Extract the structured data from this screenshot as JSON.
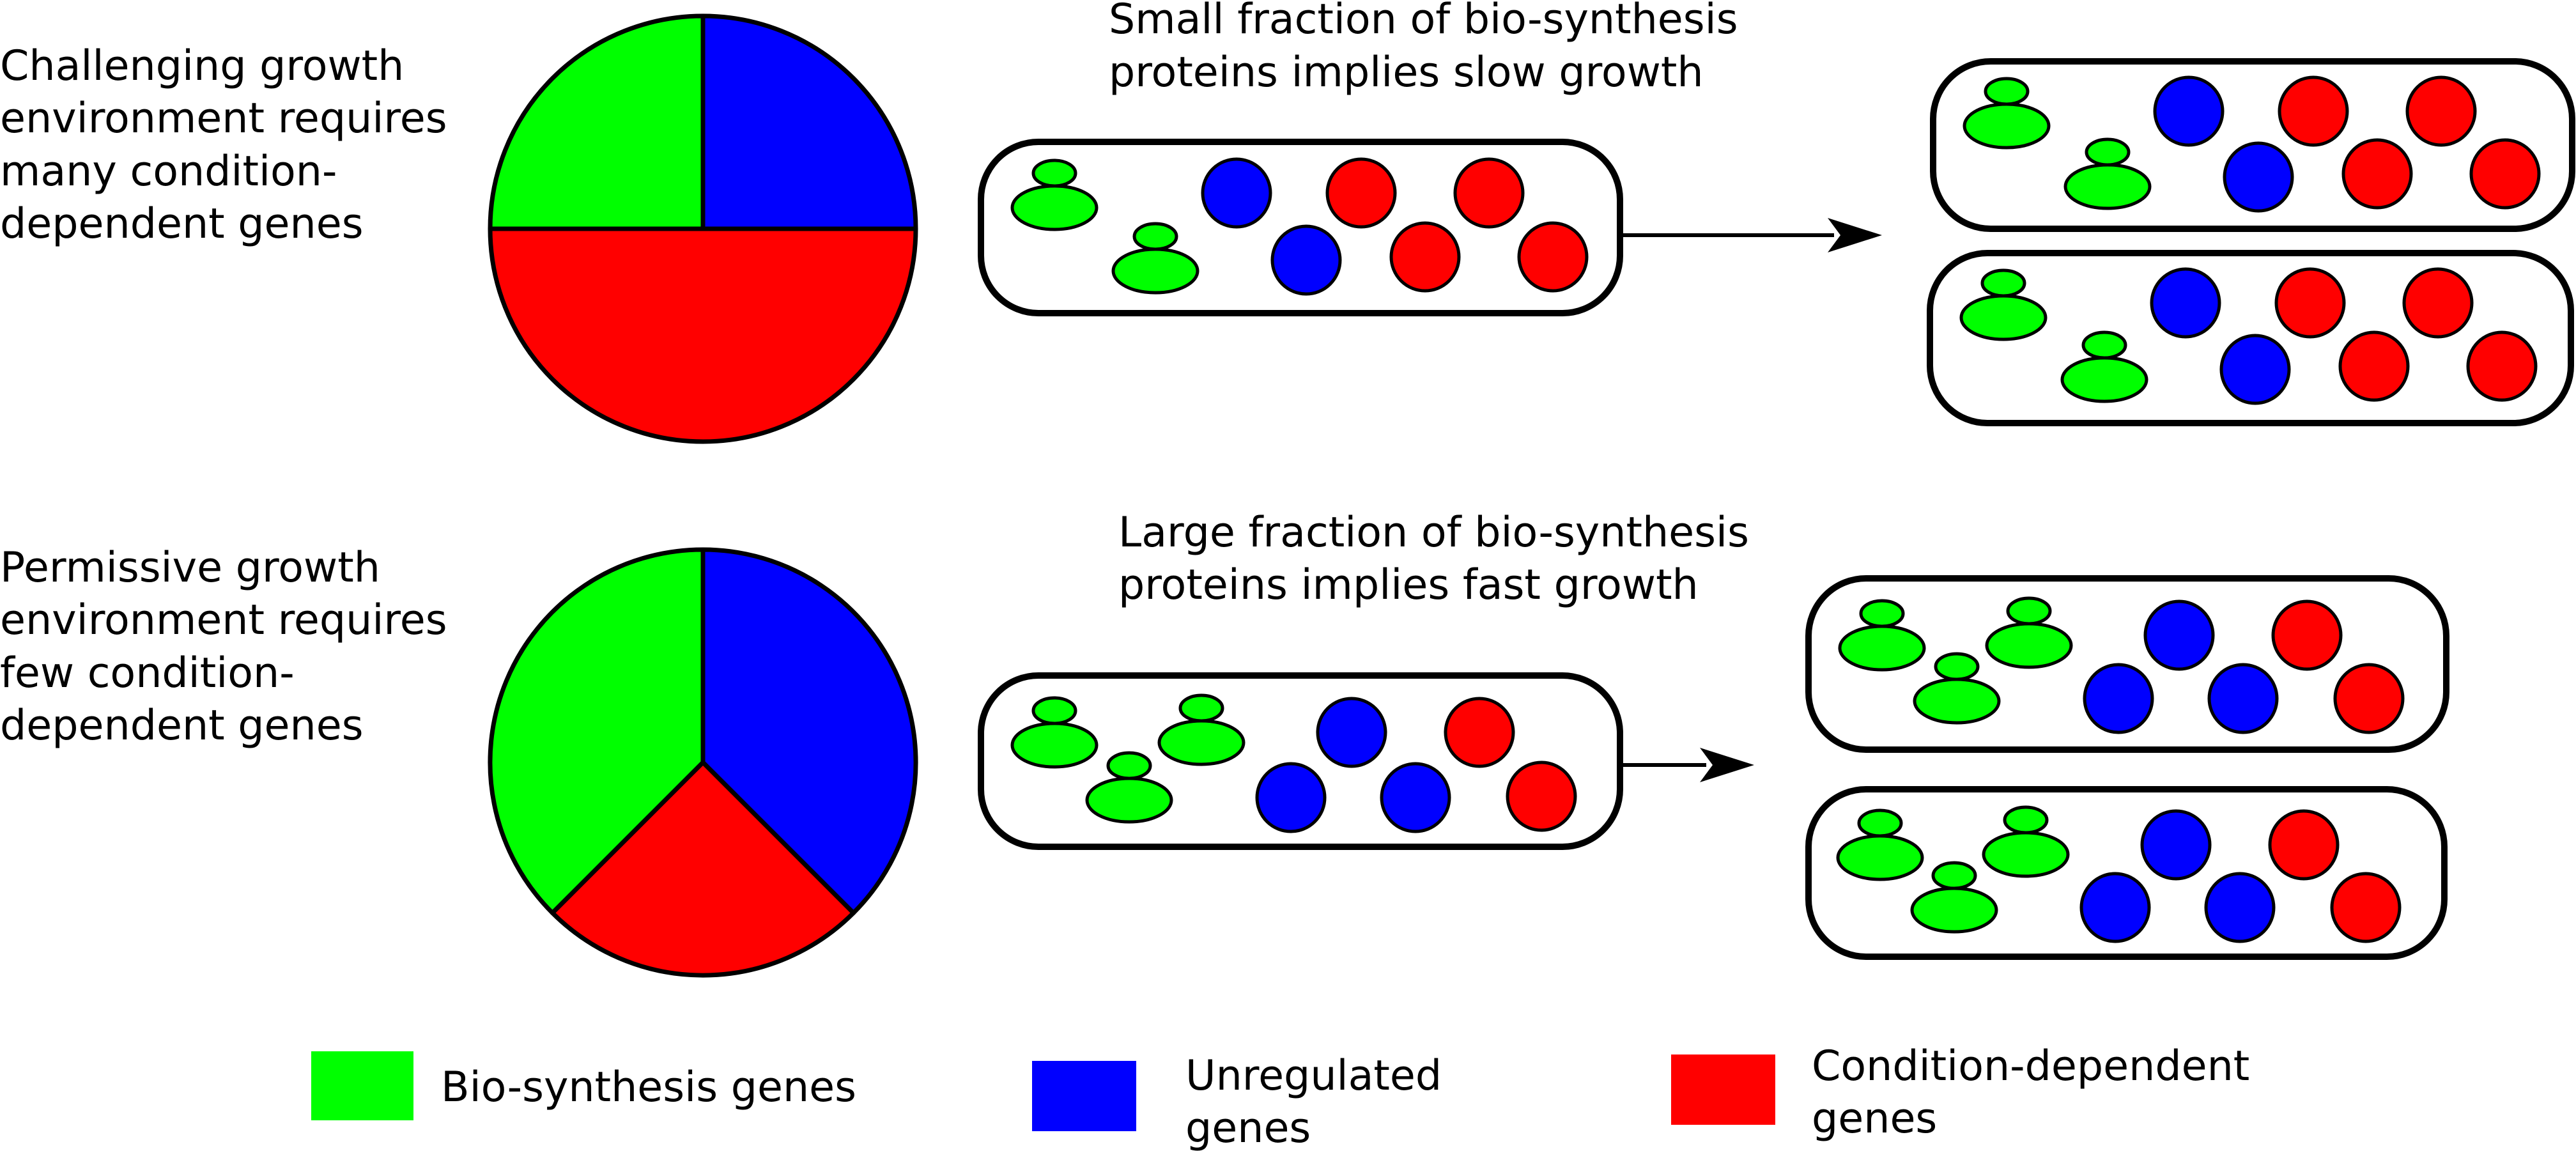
{
  "colors": {
    "biosynthesis": "#00ff00",
    "unregulated": "#0000ff",
    "condition_dependent": "#ff0000",
    "outline": "#000000",
    "background": "#ffffff"
  },
  "challenging": {
    "description_lines": [
      "Challenging growth",
      "environment requires",
      "many condition-",
      "dependent genes"
    ],
    "caption_lines": [
      "Small fraction of bio-synthesis",
      "proteins implies slow growth"
    ],
    "pie_fractions": {
      "biosynthesis": 0.25,
      "unregulated": 0.25,
      "condition_dependent": 0.5
    },
    "cell_contents": {
      "biosynthesis_proteins": 2,
      "unregulated_proteins": 2,
      "condition_dependent_proteins": 4
    },
    "daughter_cells": 2
  },
  "permissive": {
    "description_lines": [
      "Permissive growth",
      "environment requires",
      "few condition-",
      "dependent genes"
    ],
    "caption_lines": [
      "Large fraction of bio-synthesis",
      "proteins implies fast growth"
    ],
    "pie_fractions": {
      "biosynthesis": 0.375,
      "unregulated": 0.375,
      "condition_dependent": 0.25
    },
    "cell_contents": {
      "biosynthesis_proteins": 3,
      "unregulated_proteins": 3,
      "condition_dependent_proteins": 2
    },
    "daughter_cells": 2
  },
  "legend": [
    {
      "key": "biosynthesis",
      "lines": [
        "Bio-synthesis genes"
      ]
    },
    {
      "key": "unregulated",
      "lines": [
        "Unregulated",
        "genes"
      ]
    },
    {
      "key": "condition_dependent",
      "lines": [
        "Condition-dependent",
        "genes"
      ]
    }
  ]
}
